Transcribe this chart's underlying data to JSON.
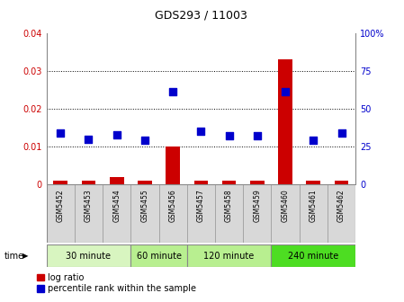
{
  "title": "GDS293 / 11003",
  "samples": [
    "GSM5452",
    "GSM5453",
    "GSM5454",
    "GSM5455",
    "GSM5456",
    "GSM5457",
    "GSM5458",
    "GSM5459",
    "GSM5460",
    "GSM5461",
    "GSM5462"
  ],
  "log_ratio": [
    0.001,
    0.001,
    0.002,
    0.001,
    0.01,
    0.001,
    0.001,
    0.001,
    0.033,
    0.001,
    0.001
  ],
  "percentile_rank": [
    34,
    30,
    33,
    29,
    61,
    35,
    32,
    32,
    61,
    29,
    34
  ],
  "ylim_left": [
    0,
    0.04
  ],
  "ylim_right": [
    0,
    100
  ],
  "yticks_left": [
    0,
    0.01,
    0.02,
    0.03,
    0.04
  ],
  "yticks_right": [
    0,
    25,
    50,
    75,
    100
  ],
  "ytick_labels_left": [
    "0",
    "0.01",
    "0.02",
    "0.03",
    "0.04"
  ],
  "ytick_labels_right": [
    "0",
    "25",
    "50",
    "75",
    "100%"
  ],
  "bar_color": "#cc0000",
  "dot_color": "#0000cc",
  "bar_width": 0.5,
  "dot_size": 28,
  "time_groups": [
    {
      "label": "30 minute",
      "start": 0,
      "end": 2,
      "color": "#d8f5c0"
    },
    {
      "label": "60 minute",
      "start": 3,
      "end": 4,
      "color": "#b8ef90"
    },
    {
      "label": "120 minute",
      "start": 5,
      "end": 7,
      "color": "#b8ef90"
    },
    {
      "label": "240 minute",
      "start": 8,
      "end": 10,
      "color": "#4ddd22"
    }
  ],
  "xlabel_time": "time",
  "legend_log_ratio": "log ratio",
  "legend_percentile": "percentile rank within the sample",
  "grid_color": "black",
  "bg_color": "#ffffff",
  "plot_bg": "#ffffff",
  "tick_label_color_left": "#cc0000",
  "tick_label_color_right": "#0000cc",
  "sample_cell_color": "#d8d8d8",
  "title_fontsize": 9,
  "axis_fontsize": 7,
  "legend_fontsize": 7
}
